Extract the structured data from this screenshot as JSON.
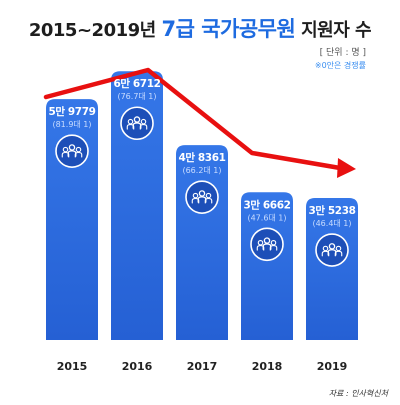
{
  "title": {
    "prefix": "2015~2019년",
    "highlight": "7급 국가공무원",
    "suffix": "지원자 수"
  },
  "unit_label": "[ 단위 : 명 ]",
  "note": "※0안은 경쟁률",
  "source": "자료 : 인사혁신처",
  "colors": {
    "bar": "#2f6fe0",
    "bar_dark": "#1f57c0",
    "trend_arrow": "#e81010",
    "title_highlight": "#1e6be0",
    "competition_text": "#c9dcff"
  },
  "chart_data": {
    "type": "bar",
    "title": "2015~2019년 7급 국가공무원 지원자 수",
    "categories": [
      "2015",
      "2016",
      "2017",
      "2018",
      "2019"
    ],
    "values": [
      59779,
      66712,
      48361,
      36662,
      35238
    ],
    "value_labels": [
      "5만 9779",
      "6만 6712",
      "4만 8361",
      "3만 6662",
      "3만 5238"
    ],
    "competition_labels": [
      "(81.9대 1)",
      "(76.7대 1)",
      "(66.2대 1)",
      "(47.6대 1)",
      "(46.4대 1)"
    ],
    "xlabel": "",
    "ylabel": "",
    "unit": "명",
    "ylim": [
      0,
      70000
    ],
    "grid": false,
    "legend": "none",
    "annotations": [
      "trend-arrow-down",
      "people-icon"
    ]
  }
}
